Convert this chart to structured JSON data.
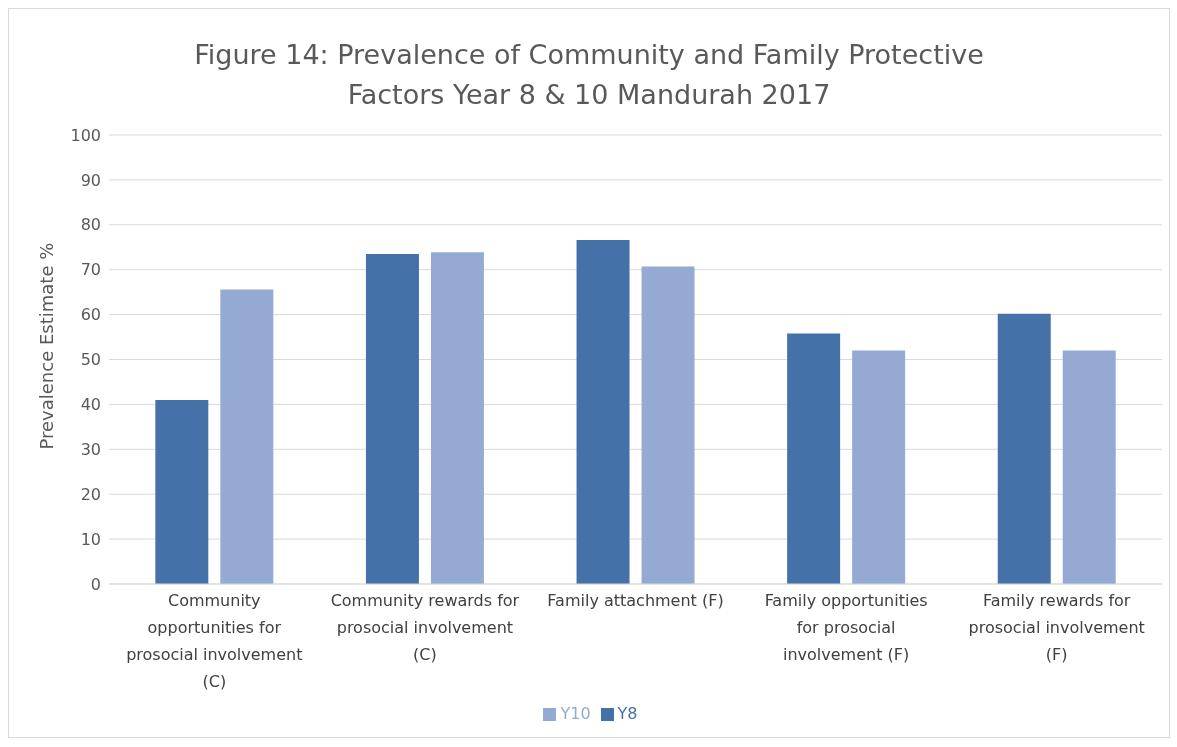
{
  "chart_data": {
    "type": "bar",
    "title": "Figure 14: Prevalence of Community and Family Protective Factors Year 8 & 10 Mandurah 2017",
    "categories": [
      "Community opportunities for prosocial involvement (C)",
      "Community rewards for prosocial involvement (C)",
      "Family attachment (F)",
      "Family opportunities for prosocial involvement (F)",
      "Family rewards for prosocial involvement (F)"
    ],
    "series": [
      {
        "name": "Y8",
        "color": "#4472a8",
        "values": [
          41,
          73.5,
          76.6,
          55.8,
          60.2
        ]
      },
      {
        "name": "Y10",
        "color": "#95aad2",
        "values": [
          65.6,
          73.9,
          70.7,
          52,
          52
        ]
      }
    ],
    "ylabel": "Prevalence Estimate %",
    "ylim": [
      0,
      100
    ],
    "yticks": [
      0,
      10,
      20,
      30,
      40,
      50,
      60,
      70,
      80,
      90,
      100
    ],
    "grid": "y",
    "legend": "bottom"
  }
}
